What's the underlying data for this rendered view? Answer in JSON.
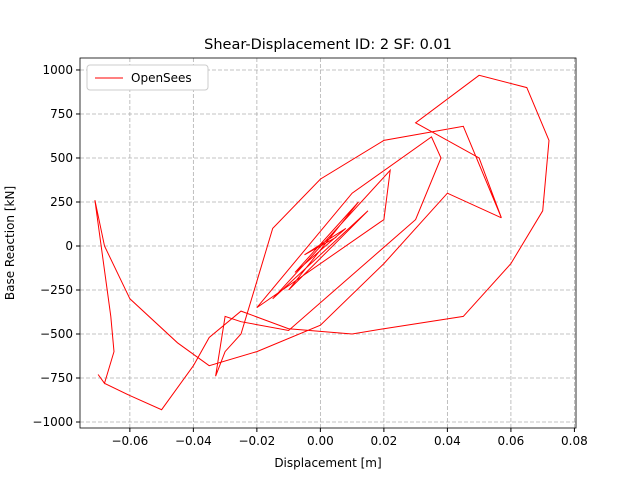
{
  "chart_data": {
    "type": "line",
    "title": "Shear-Displacement ID: 2  SF: 0.01",
    "xlabel": "Displacement [m]",
    "ylabel": "Base Reaction [kN]",
    "xlim": [
      -0.0757,
      0.0805
    ],
    "ylim": [
      -1034,
      1068
    ],
    "xticks": [
      {
        "value": -0.06,
        "label": "−0.06"
      },
      {
        "value": -0.04,
        "label": "−0.04"
      },
      {
        "value": -0.02,
        "label": "−0.02"
      },
      {
        "value": 0,
        "label": "0.00"
      },
      0.02,
      0.04,
      0.06,
      0.08
    ],
    "yticks": [
      {
        "value": -1000,
        "label": "−1000"
      },
      {
        "value": -750,
        "label": "−750"
      },
      {
        "value": -500,
        "label": "−500"
      },
      {
        "value": -250,
        "label": "−250"
      },
      0,
      250,
      500,
      750,
      1000
    ],
    "grid": true,
    "legend": "upper left",
    "series": [
      {
        "name": "OpenSees",
        "color": "#ff0000",
        "x": [
          0,
          0.005,
          -0.005,
          0.008,
          -0.008,
          0.012,
          -0.01,
          0.015,
          -0.015,
          0.022,
          0.02,
          -0.02,
          0.01,
          0.035,
          0.038,
          0.03,
          -0.01,
          -0.025,
          -0.03,
          -0.033,
          -0.03,
          -0.025,
          -0.02,
          -0.015,
          0,
          0.02,
          0.045,
          0.057,
          0.05,
          0.03,
          0.05,
          0.065,
          0.072,
          0.07,
          0.06,
          0.045,
          0.02,
          0.01,
          -0.01,
          -0.025,
          -0.035,
          -0.04,
          -0.05,
          -0.06,
          -0.068,
          -0.07,
          -0.068,
          -0.065,
          -0.066,
          -0.071,
          -0.068,
          -0.06,
          -0.045,
          -0.035,
          -0.02,
          0,
          0.02,
          0.04,
          0.057
        ],
        "y": [
          0,
          50,
          -50,
          100,
          -150,
          250,
          -250,
          200,
          -300,
          430,
          150,
          -350,
          300,
          620,
          500,
          150,
          -480,
          -430,
          -400,
          -740,
          -600,
          -500,
          -200,
          100,
          380,
          600,
          680,
          160,
          500,
          700,
          970,
          900,
          600,
          200,
          -100,
          -400,
          -470,
          -500,
          -470,
          -370,
          -520,
          -680,
          -930,
          -850,
          -780,
          -730,
          -780,
          -600,
          -400,
          260,
          0,
          -300,
          -550,
          -680,
          -600,
          -450,
          -100,
          300,
          160
        ]
      }
    ]
  }
}
